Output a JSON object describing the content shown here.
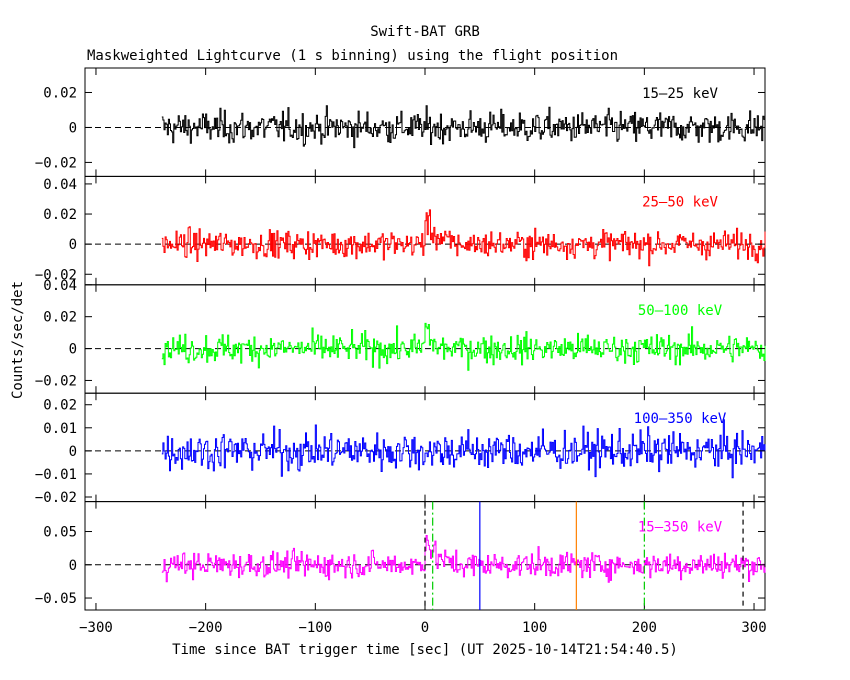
{
  "chart_data": {
    "type": "line",
    "title": "Swift-BAT GRB",
    "subtitle": "Maskweighted Lightcurve (1 s binning) using the flight position",
    "xlabel": "Time since BAT trigger time [sec] (UT 2025-10-14T21:54:40.5)",
    "ylabel": "Counts/sec/det",
    "xlim": [
      -310,
      310
    ],
    "x_ticks": [
      -300,
      -200,
      -100,
      0,
      100,
      200,
      300
    ],
    "x_tick_labels": [
      "−300",
      "−200",
      "−100",
      "0",
      "100",
      "200",
      "300"
    ],
    "data_range": [
      -240,
      310
    ],
    "panels": [
      {
        "name": "15–25 keV",
        "color": "#000000",
        "ylim": [
          -0.028,
          0.034
        ],
        "ticks": [
          -0.02,
          0,
          0.02
        ],
        "tick_labels": [
          "−0.02",
          "0",
          "0.02"
        ],
        "noise": 0.0075,
        "bumps": []
      },
      {
        "name": "25–50 keV",
        "color": "#ff0000",
        "ylim": [
          -0.027,
          0.045
        ],
        "ticks": [
          -0.02,
          0,
          0.02,
          0.04
        ],
        "tick_labels": [
          "−0.02",
          "0",
          "0.02",
          "0.04"
        ],
        "noise": 0.0075,
        "bumps": [
          {
            "t0": 0,
            "t1": 25,
            "amp": 0.018
          }
        ]
      },
      {
        "name": "50–100 keV",
        "color": "#00ff00",
        "ylim": [
          -0.028,
          0.04
        ],
        "ticks": [
          -0.02,
          0,
          0.02,
          0.04
        ],
        "tick_labels": [
          "−0.02",
          "0",
          "0.02",
          "0.04"
        ],
        "noise": 0.0075,
        "bumps": [
          {
            "t0": 0,
            "t1": 12,
            "amp": 0.018
          }
        ]
      },
      {
        "name": "100–350 keV",
        "color": "#0000ff",
        "ylim": [
          -0.022,
          0.025
        ],
        "ticks": [
          -0.02,
          -0.01,
          0,
          0.01,
          0.02
        ],
        "tick_labels": [
          "−0.02",
          "−0.01",
          "0",
          "0.01",
          "0.02"
        ],
        "noise": 0.007,
        "bumps": []
      },
      {
        "name": "15–350 keV",
        "color": "#ff00ff",
        "ylim": [
          -0.068,
          0.095
        ],
        "ticks": [
          -0.05,
          0,
          0.05
        ],
        "tick_labels": [
          "−0.05",
          "0",
          "0.05"
        ],
        "noise": 0.016,
        "bumps": [
          {
            "t0": 0,
            "t1": 25,
            "amp": 0.045
          }
        ]
      }
    ],
    "markers": [
      {
        "x": 0,
        "color": "#000000",
        "style": "dashed"
      },
      {
        "x": 7,
        "color": "#00cc00",
        "style": "dashdot"
      },
      {
        "x": 50,
        "color": "#0000ff",
        "style": "solid"
      },
      {
        "x": 138,
        "color": "#ff8000",
        "style": "solid"
      },
      {
        "x": 200,
        "color": "#00cc00",
        "style": "dashdot"
      },
      {
        "x": 290,
        "color": "#000000",
        "style": "dashed"
      }
    ]
  }
}
